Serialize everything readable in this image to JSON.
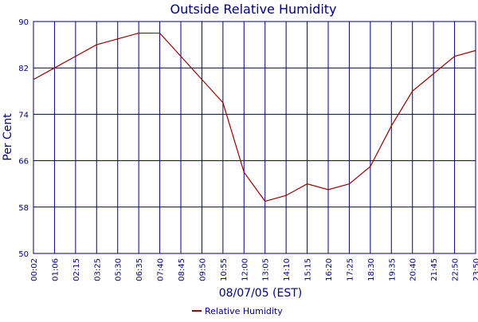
{
  "chart_data": {
    "type": "line",
    "title": "Outside Relative Humidity",
    "x_label": "08/07/05 (EST)",
    "y_label": "Per Cent",
    "categories": [
      "00:02",
      "01:06",
      "02:15",
      "03:25",
      "05:30",
      "06:35",
      "07:40",
      "08:45",
      "09:50",
      "10:55",
      "12:00",
      "13:05",
      "14:10",
      "15:15",
      "16:20",
      "17:25",
      "18:30",
      "19:35",
      "20:40",
      "21:45",
      "22:50",
      "23:50"
    ],
    "series": [
      {
        "name": "Relative Humidity",
        "color": "#990000",
        "values": [
          80,
          82,
          84,
          86,
          87,
          88,
          88,
          84,
          80,
          76,
          64,
          59,
          60,
          62,
          61,
          62,
          65,
          72,
          78,
          81,
          84,
          85
        ]
      }
    ],
    "ylim": [
      50,
      90
    ],
    "yticks": [
      50,
      58,
      66,
      74,
      82,
      90
    ],
    "grid": true
  }
}
